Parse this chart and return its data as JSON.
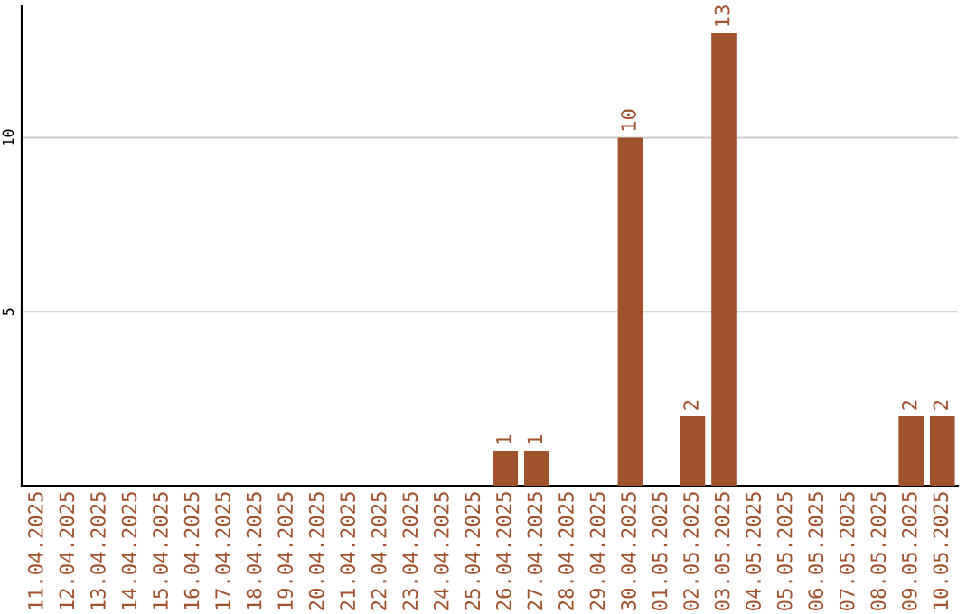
{
  "chart_data": {
    "type": "bar",
    "categories": [
      "11.04.2025",
      "12.04.2025",
      "13.04.2025",
      "14.04.2025",
      "15.04.2025",
      "16.04.2025",
      "17.04.2025",
      "18.04.2025",
      "19.04.2025",
      "20.04.2025",
      "21.04.2025",
      "22.04.2025",
      "23.04.2025",
      "24.04.2025",
      "25.04.2025",
      "26.04.2025",
      "27.04.2025",
      "28.04.2025",
      "29.04.2025",
      "30.04.2025",
      "01.05.2025",
      "02.05.2025",
      "03.05.2025",
      "04.05.2025",
      "05.05.2025",
      "06.05.2025",
      "07.05.2025",
      "08.05.2025",
      "09.05.2025",
      "10.05.2025"
    ],
    "series": [
      {
        "color": "#a0522d",
        "values": [
          0,
          0,
          0,
          0,
          0,
          0,
          0,
          0,
          0,
          0,
          0,
          0,
          0,
          0,
          0,
          1,
          1,
          0,
          0,
          10,
          0,
          2,
          13,
          0,
          0,
          0,
          0,
          0,
          2,
          2
        ],
        "value_labels": [
          null,
          null,
          null,
          null,
          null,
          null,
          null,
          null,
          null,
          null,
          null,
          null,
          null,
          null,
          null,
          "1",
          "1",
          null,
          null,
          "10",
          null,
          "2",
          "13",
          null,
          null,
          null,
          null,
          null,
          "2",
          "2"
        ]
      }
    ],
    "ylim": [
      0,
      13.8
    ],
    "yticks": [
      5,
      10
    ],
    "grid": "y",
    "legend": false
  }
}
